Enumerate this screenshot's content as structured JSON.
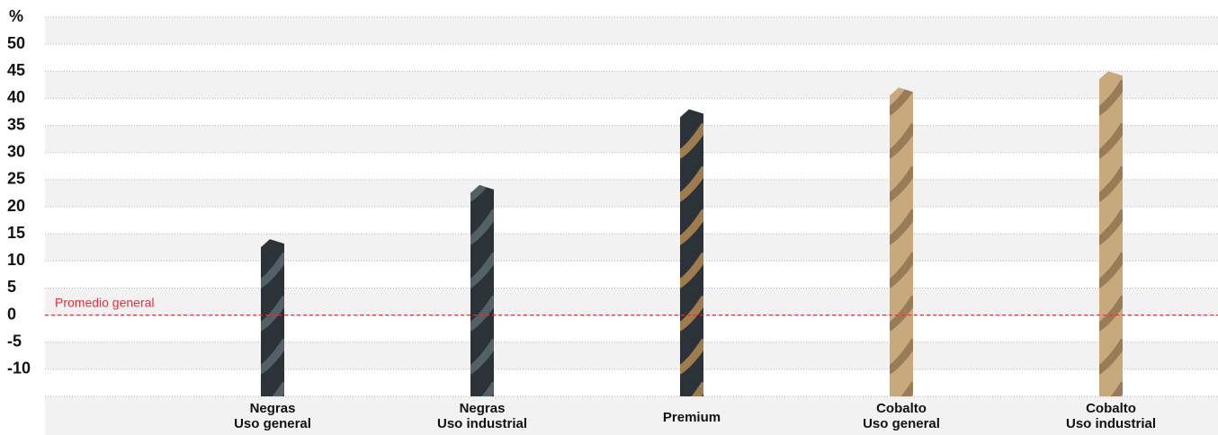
{
  "chart_data": {
    "type": "bar",
    "y_label": "%",
    "categories": [
      [
        "Negras",
        "Uso general"
      ],
      [
        "Negras",
        "Uso industrial"
      ],
      [
        "Premium"
      ],
      [
        "Cobalto",
        "Uso general"
      ],
      [
        "Cobalto",
        "Uso industrial"
      ]
    ],
    "values": [
      14,
      24,
      38,
      42,
      45
    ],
    "colors": [
      "#2c3338",
      "#2c3338",
      "#2c3338",
      "#c7a97c",
      "#c7a97c"
    ],
    "stripe_colors": [
      "#5a6a70",
      "#5a6a70",
      "#b38a52",
      "#8f7452",
      "#8f7452"
    ],
    "ylim": [
      -15,
      55
    ],
    "yticks": [
      -10,
      -5,
      0,
      5,
      10,
      15,
      20,
      25,
      30,
      35,
      40,
      45,
      50
    ],
    "grid": true,
    "reference": {
      "value": 0,
      "label": "Promedio general",
      "color": "#e0303a"
    }
  }
}
